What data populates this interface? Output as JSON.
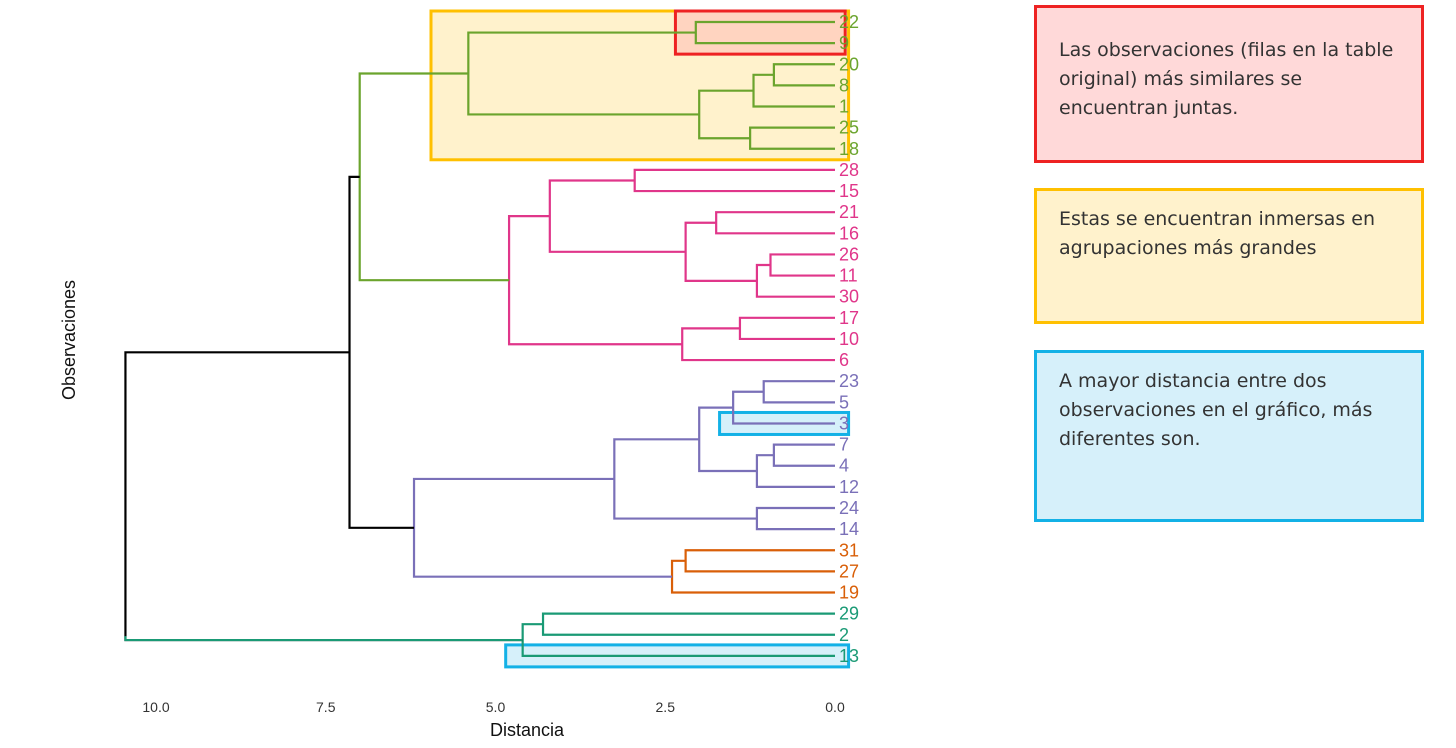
{
  "chart_data": {
    "type": "dendrogram",
    "orientation": "horizontal",
    "xlabel": "Distancia",
    "ylabel": "Observaciones",
    "xlim": [
      10.5,
      0
    ],
    "x_ticks": [
      "10.0",
      "7.5",
      "5.0",
      "2.5",
      "0.0"
    ],
    "x_tick_values": [
      10.0,
      7.5,
      5.0,
      2.5,
      0.0
    ],
    "cluster_colors": {
      "green": "#6ba42d",
      "pink": "#e0368a",
      "purple": "#7a70b8",
      "orange": "#d95f08",
      "teal": "#1a9a75",
      "root": "#000000"
    },
    "leaves": [
      {
        "label": "22",
        "cluster": "green"
      },
      {
        "label": "9",
        "cluster": "green"
      },
      {
        "label": "20",
        "cluster": "green"
      },
      {
        "label": "8",
        "cluster": "green"
      },
      {
        "label": "1",
        "cluster": "green"
      },
      {
        "label": "25",
        "cluster": "green"
      },
      {
        "label": "18",
        "cluster": "green"
      },
      {
        "label": "28",
        "cluster": "pink"
      },
      {
        "label": "15",
        "cluster": "pink"
      },
      {
        "label": "21",
        "cluster": "pink"
      },
      {
        "label": "16",
        "cluster": "pink"
      },
      {
        "label": "26",
        "cluster": "pink"
      },
      {
        "label": "11",
        "cluster": "pink"
      },
      {
        "label": "30",
        "cluster": "pink"
      },
      {
        "label": "17",
        "cluster": "pink"
      },
      {
        "label": "10",
        "cluster": "pink"
      },
      {
        "label": "6",
        "cluster": "pink"
      },
      {
        "label": "23",
        "cluster": "purple"
      },
      {
        "label": "5",
        "cluster": "purple"
      },
      {
        "label": "3",
        "cluster": "purple"
      },
      {
        "label": "7",
        "cluster": "purple"
      },
      {
        "label": "4",
        "cluster": "purple"
      },
      {
        "label": "12",
        "cluster": "purple"
      },
      {
        "label": "24",
        "cluster": "purple"
      },
      {
        "label": "14",
        "cluster": "purple"
      },
      {
        "label": "31",
        "cluster": "orange"
      },
      {
        "label": "27",
        "cluster": "orange"
      },
      {
        "label": "19",
        "cluster": "orange"
      },
      {
        "label": "29",
        "cluster": "teal"
      },
      {
        "label": "2",
        "cluster": "teal"
      },
      {
        "label": "13",
        "cluster": "teal"
      }
    ],
    "merges": [
      {
        "a": "L0",
        "b": "L1",
        "height": 2.05,
        "color": "green"
      },
      {
        "a": "L2",
        "b": "L3",
        "height": 0.9,
        "color": "green"
      },
      {
        "a": "M1",
        "b": "L4",
        "height": 1.2,
        "color": "green"
      },
      {
        "a": "L5",
        "b": "L6",
        "height": 1.25,
        "color": "green"
      },
      {
        "a": "M2",
        "b": "M3",
        "height": 2.0,
        "color": "green"
      },
      {
        "a": "M0",
        "b": "M4",
        "height": 5.4,
        "color": "green"
      },
      {
        "a": "L7",
        "b": "L8",
        "height": 2.95,
        "color": "pink"
      },
      {
        "a": "L9",
        "b": "L10",
        "height": 1.75,
        "color": "pink"
      },
      {
        "a": "L11",
        "b": "L12",
        "height": 0.95,
        "color": "pink"
      },
      {
        "a": "M8",
        "b": "L13",
        "height": 1.15,
        "color": "pink"
      },
      {
        "a": "M7",
        "b": "M9",
        "height": 2.2,
        "color": "pink"
      },
      {
        "a": "M6",
        "b": "M10",
        "height": 4.2,
        "color": "pink"
      },
      {
        "a": "L14",
        "b": "L15",
        "height": 1.4,
        "color": "pink"
      },
      {
        "a": "M12",
        "b": "L16",
        "height": 2.25,
        "color": "pink"
      },
      {
        "a": "M11",
        "b": "M13",
        "height": 4.8,
        "color": "pink"
      },
      {
        "a": "M5",
        "b": "M14",
        "height": 7.0,
        "color": "green"
      },
      {
        "a": "L17",
        "b": "L18",
        "height": 1.05,
        "color": "purple"
      },
      {
        "a": "M16",
        "b": "L19",
        "height": 1.5,
        "color": "purple"
      },
      {
        "a": "L20",
        "b": "L21",
        "height": 0.9,
        "color": "purple"
      },
      {
        "a": "M18",
        "b": "L22",
        "height": 1.15,
        "color": "purple"
      },
      {
        "a": "M17",
        "b": "M19",
        "height": 2.0,
        "color": "purple"
      },
      {
        "a": "L23",
        "b": "L24",
        "height": 1.15,
        "color": "purple"
      },
      {
        "a": "M20",
        "b": "M21",
        "height": 3.25,
        "color": "purple"
      },
      {
        "a": "L25",
        "b": "L26",
        "height": 2.2,
        "color": "orange"
      },
      {
        "a": "M23",
        "b": "L27",
        "height": 2.4,
        "color": "orange"
      },
      {
        "a": "M22",
        "b": "M24",
        "height": 6.2,
        "color": "purple"
      },
      {
        "a": "M15",
        "b": "M25",
        "height": 7.15,
        "color": "root"
      },
      {
        "a": "L28",
        "b": "L29",
        "height": 4.3,
        "color": "teal"
      },
      {
        "a": "M27",
        "b": "L30",
        "height": 4.6,
        "color": "teal"
      },
      {
        "a": "M26",
        "b": "M28",
        "height": 10.45,
        "color": "root"
      }
    ],
    "highlights": [
      {
        "color": "#ffc000",
        "fill": "#fff2cc",
        "from_leaf": 0,
        "to_leaf": 6,
        "x_extent": [
          5.95,
          -0.2
        ]
      },
      {
        "color": "#ee2222",
        "fill": "#ffd4c0",
        "from_leaf": 0,
        "to_leaf": 1,
        "x_extent": [
          2.35,
          -0.15
        ]
      },
      {
        "color": "#13b1e6",
        "fill": "#d6f0fa",
        "from_leaf": 19,
        "to_leaf": 19,
        "x_extent": [
          1.7,
          -0.2
        ]
      },
      {
        "color": "#13b1e6",
        "fill": "#d6f0fa",
        "from_leaf": 30,
        "to_leaf": 30,
        "x_extent": [
          4.85,
          -0.2
        ]
      }
    ]
  },
  "annotations": {
    "red": "Las observaciones (filas en la table original) más similares se encuentran juntas.",
    "yellow": "Estas se encuentran inmersas en agrupaciones más grandes",
    "blue": "A mayor distancia entre dos observaciones en el gráfico, más diferentes son."
  }
}
